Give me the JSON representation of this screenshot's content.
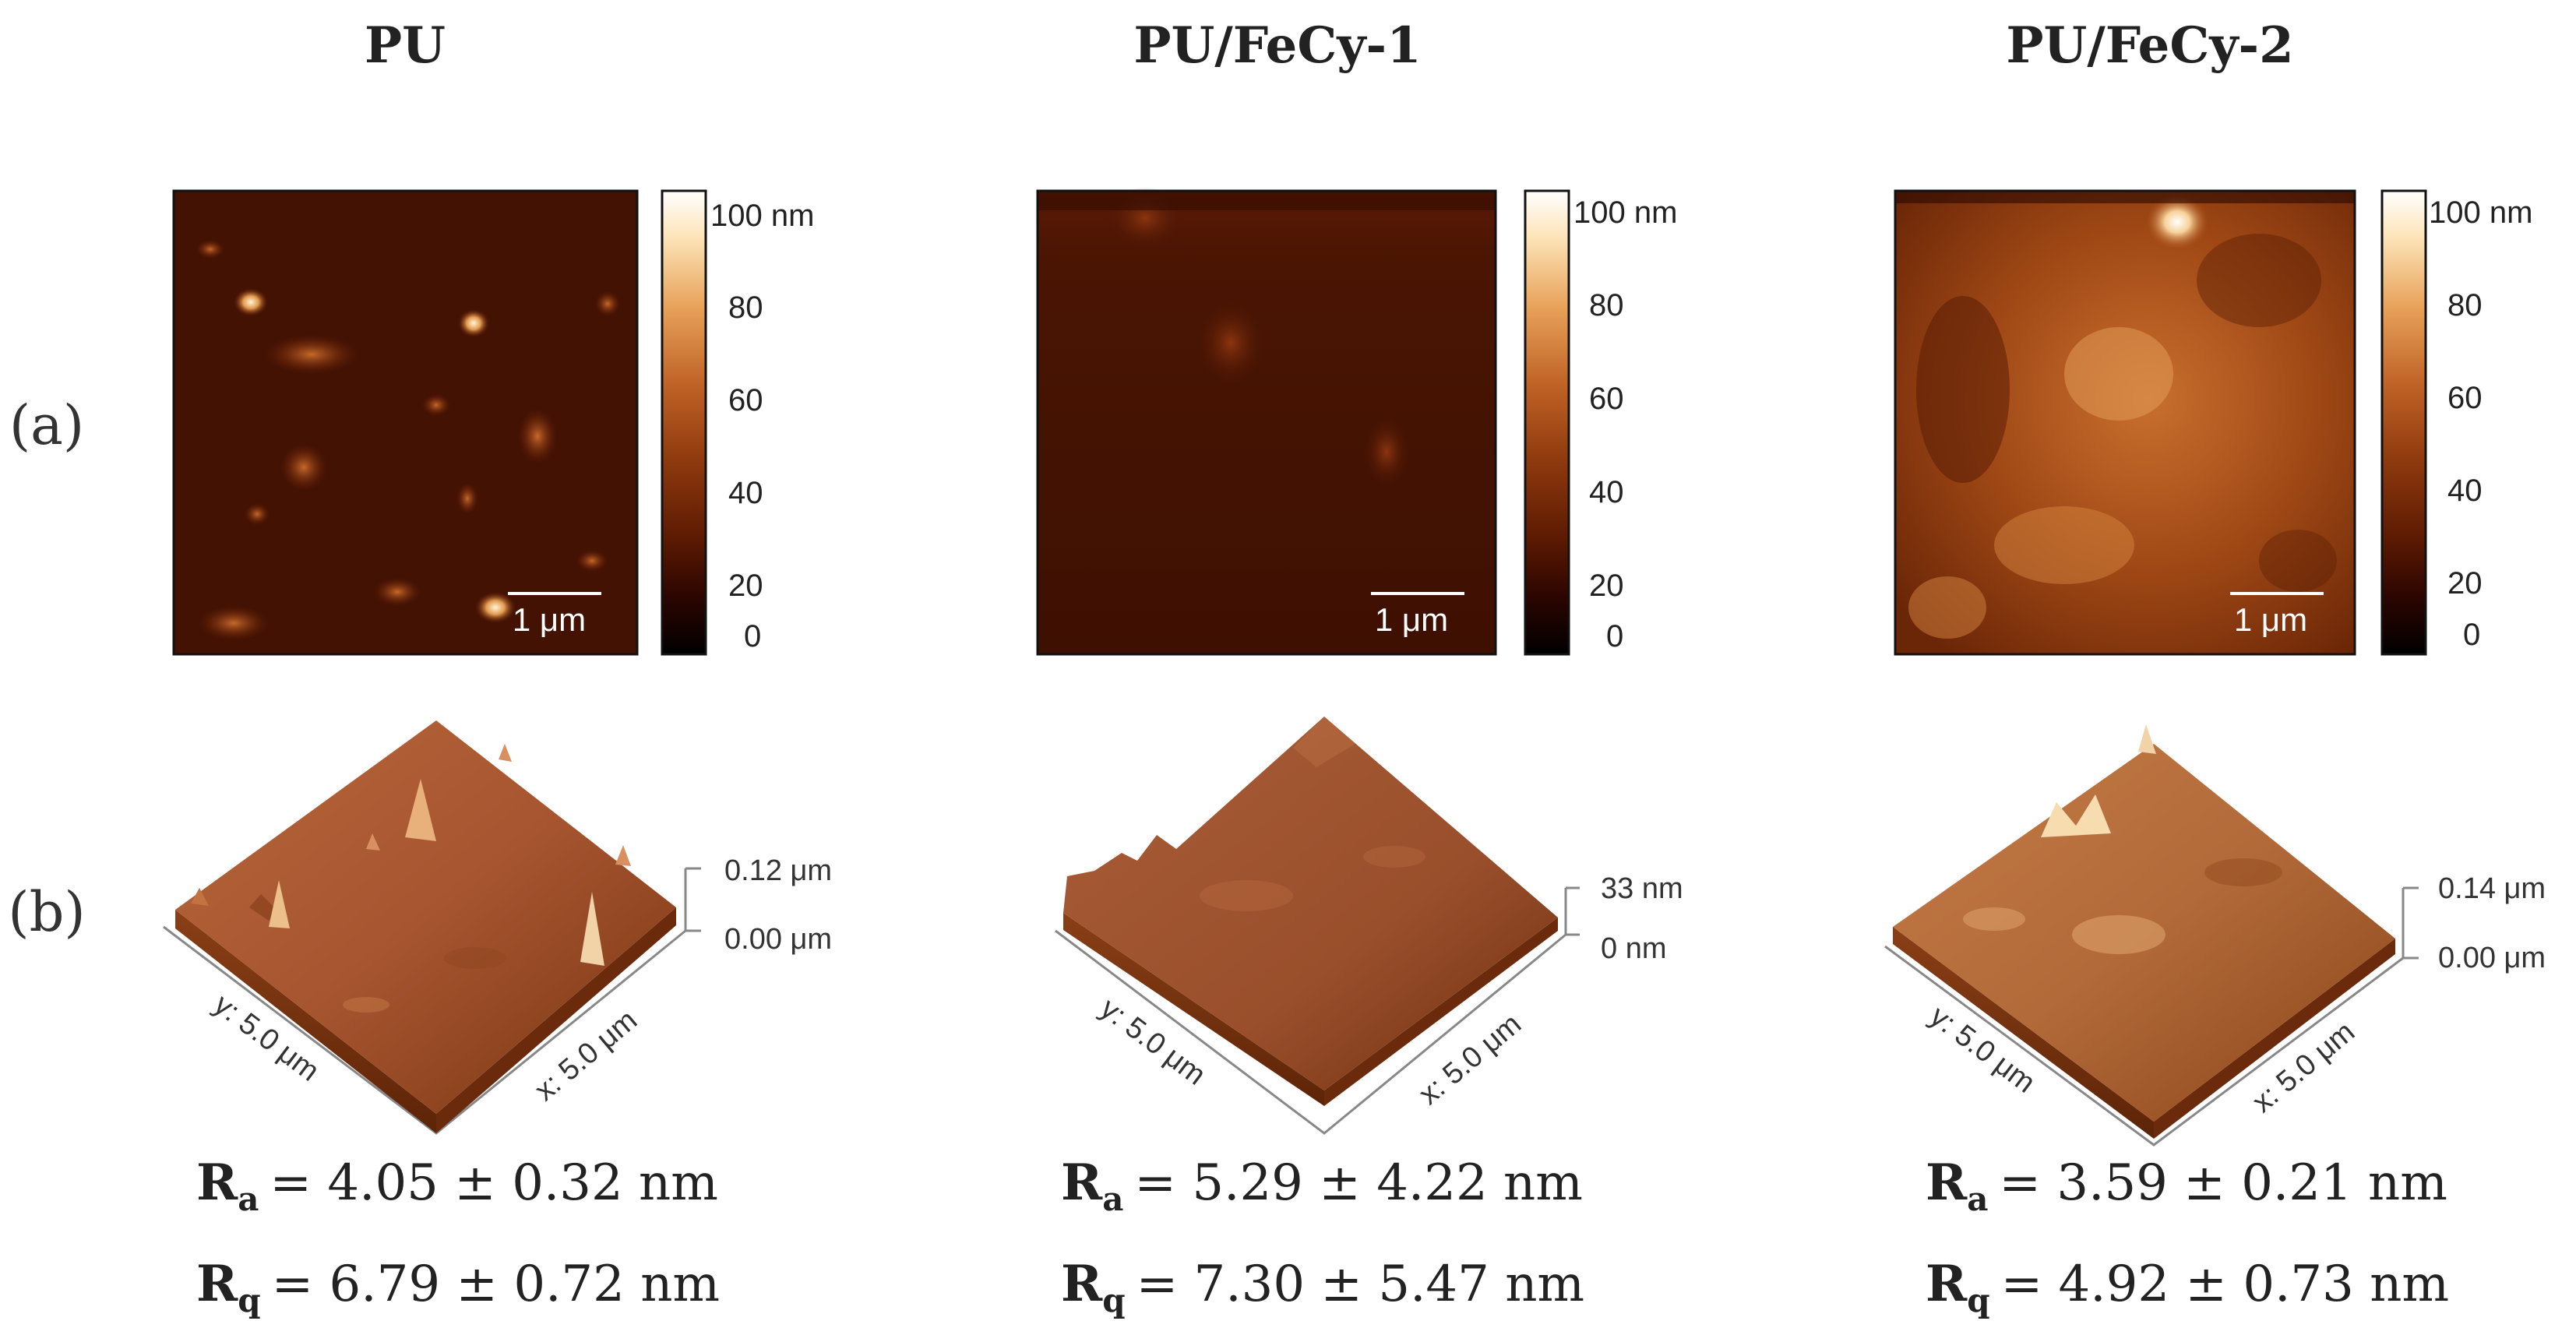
{
  "row_labels": {
    "a": "(a)",
    "b": "(b)"
  },
  "colorbar_ticks": [
    "100 nm",
    "80",
    "60",
    "40",
    "20",
    "0"
  ],
  "scale_bar_label": "1 μm",
  "axis_labels": {
    "x": "x: 5.0 μm",
    "y": "y: 5.0 μm"
  },
  "colormap": [
    "#000000",
    "#2a0500",
    "#5c1a02",
    "#8f3a0e",
    "#bf6226",
    "#e8a25a",
    "#fde4b8",
    "#ffffff"
  ],
  "samples": [
    {
      "title": "PU",
      "z_top": "0.12 μm",
      "z_bottom": "0.00 μm",
      "ra_sym": "R",
      "ra_sub": "a",
      "ra_val": "= 4.05 ± 0.32 nm",
      "rq_sym": "R",
      "rq_sub": "q",
      "rq_val": "= 6.79 ± 0.72 nm"
    },
    {
      "title": "PU/FeCy-1",
      "z_top": "33 nm",
      "z_bottom": "0 nm",
      "ra_sym": "R",
      "ra_sub": "a",
      "ra_val": "= 5.29 ± 4.22 nm",
      "rq_sym": "R",
      "rq_sub": "q",
      "rq_val": "= 7.30 ± 5.47 nm"
    },
    {
      "title": "PU/FeCy-2",
      "z_top": "0.14 μm",
      "z_bottom": "0.00 μm",
      "ra_sym": "R",
      "ra_sub": "a",
      "ra_val": "= 3.59 ± 0.21 nm",
      "rq_sym": "R",
      "rq_sub": "q",
      "rq_val": "= 4.92 ± 0.73 nm"
    }
  ]
}
